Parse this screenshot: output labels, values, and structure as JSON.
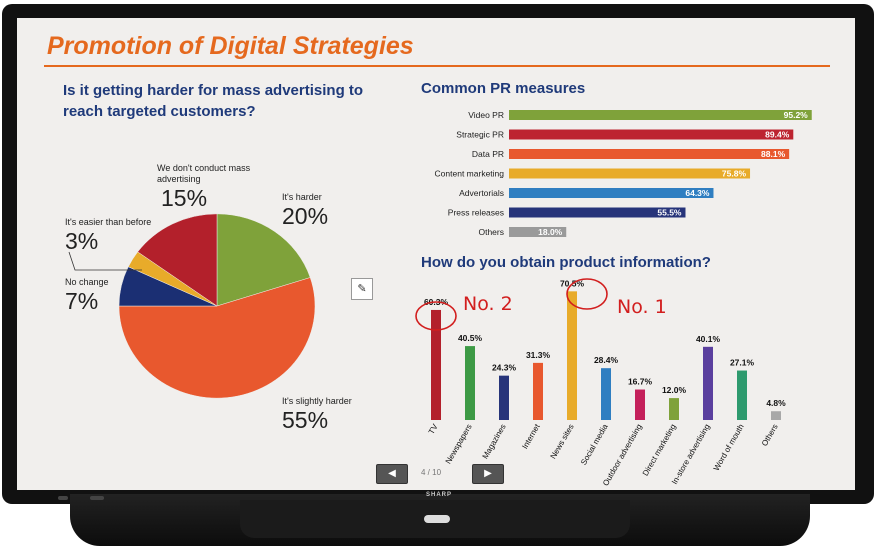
{
  "slide": {
    "title": "Promotion of Digital Strategies",
    "pie_question": "Is it getting harder for mass advertising to reach targeted customers?",
    "pr_title": "Common PR measures",
    "product_title": "How do you obtain product information?"
  },
  "annotations": {
    "note_2": "No. 2",
    "note_1": "No. 1"
  },
  "nav": {
    "prev": "◀",
    "next": "▶",
    "page": "4 / 10"
  },
  "device": {
    "brand": "SHARP"
  },
  "tool_icon": "pen-tool-icon",
  "colors": {
    "title": "#e5691e",
    "heading": "#1f3a7a",
    "ink": "#d21e1e"
  },
  "chart_data": [
    {
      "type": "pie",
      "slices": [
        {
          "label": "It's harder",
          "value": 20,
          "display": "20%",
          "color": "#7fa23a"
        },
        {
          "label": "It's slightly harder",
          "value": 55,
          "display": "55%",
          "color": "#e8582e"
        },
        {
          "label": "No change",
          "value": 7,
          "display": "7%",
          "color": "#1b2f73"
        },
        {
          "label": "It's easier than before",
          "value": 3,
          "display": "3%",
          "color": "#e8ab2a"
        },
        {
          "label": "We don't conduct mass advertising",
          "value": 15,
          "display": "15%",
          "color": "#b3202b"
        }
      ]
    },
    {
      "type": "bar",
      "orientation": "horizontal",
      "categories": [
        "Video PR",
        "Strategic PR",
        "Data PR",
        "Content marketing",
        "Advertorials",
        "Press releases",
        "Others"
      ],
      "values": [
        95.2,
        89.4,
        88.1,
        75.8,
        64.3,
        55.5,
        18.0
      ],
      "labels": [
        "95.2%",
        "89.4%",
        "88.1%",
        "75.8%",
        "64.3%",
        "55.5%",
        "18.0%"
      ],
      "colors": [
        "#7fa23a",
        "#bd2430",
        "#e8582e",
        "#e8ab2a",
        "#2f7ec1",
        "#27347a",
        "#9a9a9a"
      ],
      "xlim": [
        0,
        100
      ]
    },
    {
      "type": "bar",
      "orientation": "vertical",
      "categories": [
        "TV",
        "Newspapers",
        "Magazines",
        "Internet",
        "News sites",
        "Social media",
        "Outdoor advertising",
        "Direct marketing",
        "In-store advertising",
        "Word of mouth",
        "Others"
      ],
      "values": [
        60.3,
        40.5,
        24.3,
        31.3,
        70.5,
        28.4,
        16.7,
        12.0,
        40.1,
        27.1,
        4.8
      ],
      "labels": [
        "60.3%",
        "40.5%",
        "24.3%",
        "31.3%",
        "70.5%",
        "28.4%",
        "16.7%",
        "12.0%",
        "40.1%",
        "27.1%",
        "4.8%"
      ],
      "colors": [
        "#b3202b",
        "#3d9a45",
        "#27347a",
        "#e8582e",
        "#e8ab2a",
        "#2f7ec1",
        "#c4205a",
        "#7fa23a",
        "#5a3f9e",
        "#2e9a6e",
        "#a8a8a8"
      ],
      "ylim": [
        0,
        80
      ]
    }
  ]
}
